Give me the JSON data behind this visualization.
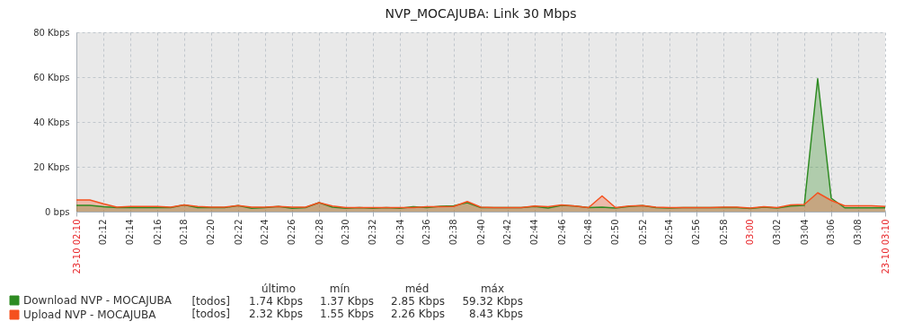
{
  "chart_data": {
    "type": "area",
    "title": "NVP_MOCAJUBA: Link 30 Mbps",
    "x": [
      2.1667,
      2.1833,
      2.2,
      2.2167,
      2.2333,
      2.25,
      2.2667,
      2.2833,
      2.3,
      2.3167,
      2.3333,
      2.35,
      2.3667,
      2.3833,
      2.4,
      2.4167,
      2.4333,
      2.45,
      2.4667,
      2.4833,
      2.5,
      2.5167,
      2.5333,
      2.55,
      2.5667,
      2.5833,
      2.6,
      2.6167,
      2.6333,
      2.65,
      2.6667,
      2.6833,
      2.7,
      2.7167,
      2.7333,
      2.75,
      2.7667,
      2.7833,
      2.8,
      2.8167,
      2.8333,
      2.85,
      2.8667,
      2.8833,
      2.9,
      2.9167,
      2.9333,
      2.95,
      2.9667,
      2.9833,
      3.0,
      3.0167,
      3.0333,
      3.05,
      3.0667,
      3.0833,
      3.1,
      3.1167,
      3.1333,
      3.15,
      3.1667
    ],
    "series": [
      {
        "name": "Download NVP - MOCAJUBA",
        "color": "#2e8b22",
        "values": [
          2.8,
          2.8,
          2.2,
          1.8,
          1.8,
          1.8,
          1.8,
          1.8,
          3.0,
          1.8,
          1.8,
          1.8,
          2.7,
          1.5,
          1.8,
          2.3,
          1.5,
          1.8,
          4.0,
          2.0,
          1.5,
          1.8,
          1.5,
          1.8,
          1.5,
          2.2,
          1.8,
          2.4,
          2.6,
          4.0,
          1.8,
          1.8,
          1.8,
          1.8,
          2.3,
          1.6,
          2.8,
          2.5,
          1.8,
          2.0,
          1.6,
          2.3,
          2.7,
          1.8,
          1.6,
          1.8,
          1.8,
          1.8,
          1.8,
          1.8,
          1.4,
          2.0,
          1.6,
          2.5,
          2.8,
          59.3,
          6.0,
          1.7,
          1.7,
          1.7,
          1.7
        ]
      },
      {
        "name": "Upload NVP - MOCAJUBA",
        "color": "#f5501e",
        "values": [
          5.2,
          5.2,
          3.5,
          2.0,
          2.3,
          2.3,
          2.3,
          2.0,
          3.0,
          2.3,
          2.0,
          2.0,
          2.7,
          2.0,
          2.0,
          2.3,
          2.0,
          2.0,
          4.0,
          2.5,
          1.8,
          1.8,
          1.8,
          1.8,
          1.8,
          1.8,
          2.2,
          2.2,
          2.3,
          4.5,
          2.0,
          1.8,
          1.8,
          1.8,
          2.5,
          2.2,
          3.0,
          2.5,
          1.8,
          7.0,
          1.8,
          2.5,
          2.7,
          2.0,
          1.8,
          1.8,
          1.8,
          1.8,
          2.0,
          2.0,
          1.6,
          2.2,
          1.8,
          3.0,
          3.2,
          8.4,
          5.0,
          2.6,
          2.6,
          2.6,
          2.3
        ]
      }
    ],
    "xlim": [
      2.1667,
      3.1667
    ],
    "xticks": [
      {
        "value": 2.1667,
        "label": "23-10 02:10"
      },
      {
        "value": 2.2,
        "label": "02:12"
      },
      {
        "value": 2.2333,
        "label": "02:14"
      },
      {
        "value": 2.2667,
        "label": "02:16"
      },
      {
        "value": 2.3,
        "label": "02:18"
      },
      {
        "value": 2.3333,
        "label": "02:20"
      },
      {
        "value": 2.3667,
        "label": "02:22"
      },
      {
        "value": 2.4,
        "label": "02:24"
      },
      {
        "value": 2.4333,
        "label": "02:26"
      },
      {
        "value": 2.4667,
        "label": "02:28"
      },
      {
        "value": 2.5,
        "label": "02:30"
      },
      {
        "value": 2.5333,
        "label": "02:32"
      },
      {
        "value": 2.5667,
        "label": "02:34"
      },
      {
        "value": 2.6,
        "label": "02:36"
      },
      {
        "value": 2.6333,
        "label": "02:38"
      },
      {
        "value": 2.6667,
        "label": "02:40"
      },
      {
        "value": 2.7,
        "label": "02:42"
      },
      {
        "value": 2.7333,
        "label": "02:44"
      },
      {
        "value": 2.7667,
        "label": "02:46"
      },
      {
        "value": 2.8,
        "label": "02:48"
      },
      {
        "value": 2.8333,
        "label": "02:50"
      },
      {
        "value": 2.8667,
        "label": "02:52"
      },
      {
        "value": 2.9,
        "label": "02:54"
      },
      {
        "value": 2.9333,
        "label": "02:56"
      },
      {
        "value": 2.9667,
        "label": "02:58"
      },
      {
        "value": 3.0,
        "label": "03:00"
      },
      {
        "value": 3.0333,
        "label": "03:02"
      },
      {
        "value": 3.0667,
        "label": "03:04"
      },
      {
        "value": 3.1,
        "label": "03:06"
      },
      {
        "value": 3.1333,
        "label": "03:08"
      },
      {
        "value": 3.1667,
        "label": "23-10 03:10"
      }
    ],
    "ylim": [
      0,
      80
    ],
    "yticks": [
      {
        "value": 0,
        "label": "0 bps"
      },
      {
        "value": 20,
        "label": "20 Kbps"
      },
      {
        "value": 40,
        "label": "40 Kbps"
      },
      {
        "value": 60,
        "label": "60 Kbps"
      },
      {
        "value": 80,
        "label": "80 Kbps"
      }
    ],
    "grid": true,
    "legend": "bottom left",
    "line_style": "solid",
    "annotations": [
      "último",
      "mín",
      "méd",
      "máx",
      "[todos]",
      "1.74 Kbps",
      "1.37 Kbps",
      "2.85 Kbps",
      "59.32 Kbps",
      "[todos]",
      "2.32 Kbps",
      "1.55 Kbps",
      "2.26 Kbps",
      "8.43 Kbps"
    ]
  }
}
